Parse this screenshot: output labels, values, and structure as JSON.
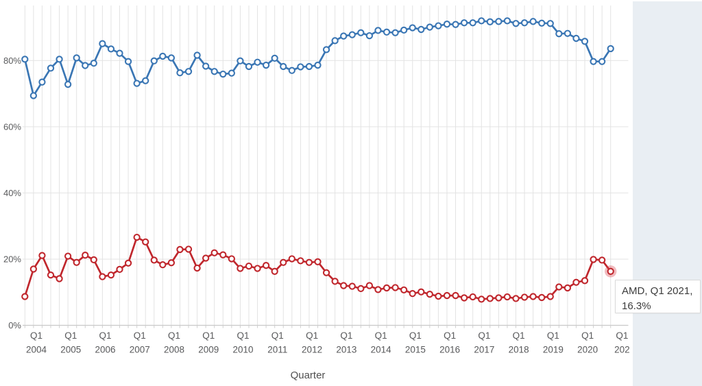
{
  "page": {
    "background": "#ffffff"
  },
  "side_panel": {
    "color": "#e9eef3"
  },
  "tooltip": {
    "line1": "AMD, Q1 2021,",
    "line2": "16.3%",
    "bg": "#ffffff",
    "border": "#d9d9d9",
    "text_color": "#3c3c3c"
  },
  "chart_data": {
    "type": "line",
    "title": "",
    "xlabel": "Quarter",
    "ylabel": "",
    "grid": true,
    "legend_position": "none",
    "ylim": [
      0,
      96.5
    ],
    "y_tick_labels": [
      "0%",
      "20%",
      "40%",
      "60%",
      "80%"
    ],
    "y_tick_values": [
      0,
      20,
      40,
      60,
      80
    ],
    "x_tick_quarter_label": "Q1",
    "x_tick_years": [
      "2004",
      "2005",
      "2006",
      "2007",
      "2008",
      "2009",
      "2010",
      "2011",
      "2012",
      "2013",
      "2014",
      "2015",
      "2016",
      "2017",
      "2018",
      "2019",
      "2020",
      "202"
    ],
    "categories": [
      "Q1 2004",
      "Q2 2004",
      "Q3 2004",
      "Q4 2004",
      "Q1 2005",
      "Q2 2005",
      "Q3 2005",
      "Q4 2005",
      "Q1 2006",
      "Q2 2006",
      "Q3 2006",
      "Q4 2006",
      "Q1 2007",
      "Q2 2007",
      "Q3 2007",
      "Q4 2007",
      "Q1 2008",
      "Q2 2008",
      "Q3 2008",
      "Q4 2008",
      "Q1 2009",
      "Q2 2009",
      "Q3 2009",
      "Q4 2009",
      "Q1 2010",
      "Q2 2010",
      "Q3 2010",
      "Q4 2010",
      "Q1 2011",
      "Q2 2011",
      "Q3 2011",
      "Q4 2011",
      "Q1 2012",
      "Q2 2012",
      "Q3 2012",
      "Q4 2012",
      "Q1 2013",
      "Q2 2013",
      "Q3 2013",
      "Q4 2013",
      "Q1 2014",
      "Q2 2014",
      "Q3 2014",
      "Q4 2014",
      "Q1 2015",
      "Q2 2015",
      "Q3 2015",
      "Q4 2015",
      "Q1 2016",
      "Q2 2016",
      "Q3 2016",
      "Q4 2016",
      "Q1 2017",
      "Q2 2017",
      "Q3 2017",
      "Q4 2017",
      "Q1 2018",
      "Q2 2018",
      "Q3 2018",
      "Q4 2018",
      "Q1 2019",
      "Q2 2019",
      "Q3 2019",
      "Q4 2019",
      "Q1 2020",
      "Q2 2020",
      "Q3 2020",
      "Q4 2020",
      "Q1 2021"
    ],
    "series": [
      {
        "id": "blue",
        "label": "",
        "color": "#3a76b4",
        "marker_fill": "#ffffff",
        "values": [
          80.4,
          69.4,
          73.5,
          77.7,
          80.4,
          72.8,
          80.8,
          78.5,
          79.2,
          85.1,
          83.5,
          82.2,
          79.7,
          73.1,
          73.9,
          79.9,
          81.3,
          80.8,
          76.3,
          76.7,
          81.6,
          78.3,
          76.7,
          75.9,
          76.2,
          79.9,
          78.2,
          79.5,
          78.6,
          80.7,
          78.2,
          77.0,
          78.1,
          78.2,
          78.6,
          83.3,
          86.0,
          87.4,
          87.8,
          88.4,
          87.5,
          89.1,
          88.6,
          88.4,
          89.2,
          89.9,
          89.4,
          90.1,
          90.5,
          91.0,
          90.9,
          91.4,
          91.4,
          92.0,
          91.7,
          91.8,
          92.0,
          91.2,
          91.4,
          91.8,
          91.3,
          91.2,
          88.1,
          88.2,
          86.7,
          85.8,
          79.7,
          79.7,
          83.6
        ]
      },
      {
        "id": "red",
        "label": "AMD",
        "color": "#c0272d",
        "marker_fill": "#ffffff",
        "highlight_last": true,
        "highlight_halo": "rgba(216,62,74,0.35)",
        "values": [
          8.7,
          17.0,
          21.1,
          15.2,
          14.1,
          20.9,
          19.0,
          21.2,
          19.8,
          14.7,
          15.2,
          16.9,
          18.8,
          26.6,
          25.2,
          19.7,
          18.3,
          18.9,
          22.9,
          23.0,
          17.3,
          20.3,
          21.9,
          21.3,
          20.1,
          17.2,
          17.9,
          17.2,
          18.1,
          16.3,
          19.0,
          20.1,
          19.5,
          19.0,
          19.2,
          15.9,
          13.3,
          12.0,
          11.8,
          11.1,
          12.0,
          10.8,
          11.3,
          11.4,
          10.7,
          9.6,
          10.1,
          9.4,
          8.8,
          9.0,
          9.0,
          8.3,
          8.6,
          7.9,
          8.1,
          8.3,
          8.6,
          8.1,
          8.5,
          8.7,
          8.4,
          8.7,
          11.6,
          11.3,
          13.0,
          13.5,
          19.9,
          19.7,
          16.3
        ]
      }
    ],
    "highlighted_point": {
      "series": "AMD",
      "category": "Q1 2021",
      "value": 16.3
    },
    "colors": {
      "gridline": "#e3e3e3",
      "axis_line": "#c8c8c8",
      "tick_stub": "#cfcfcf",
      "tick_text": "#58595b",
      "axis_title_text": "#4f4f4f"
    }
  }
}
